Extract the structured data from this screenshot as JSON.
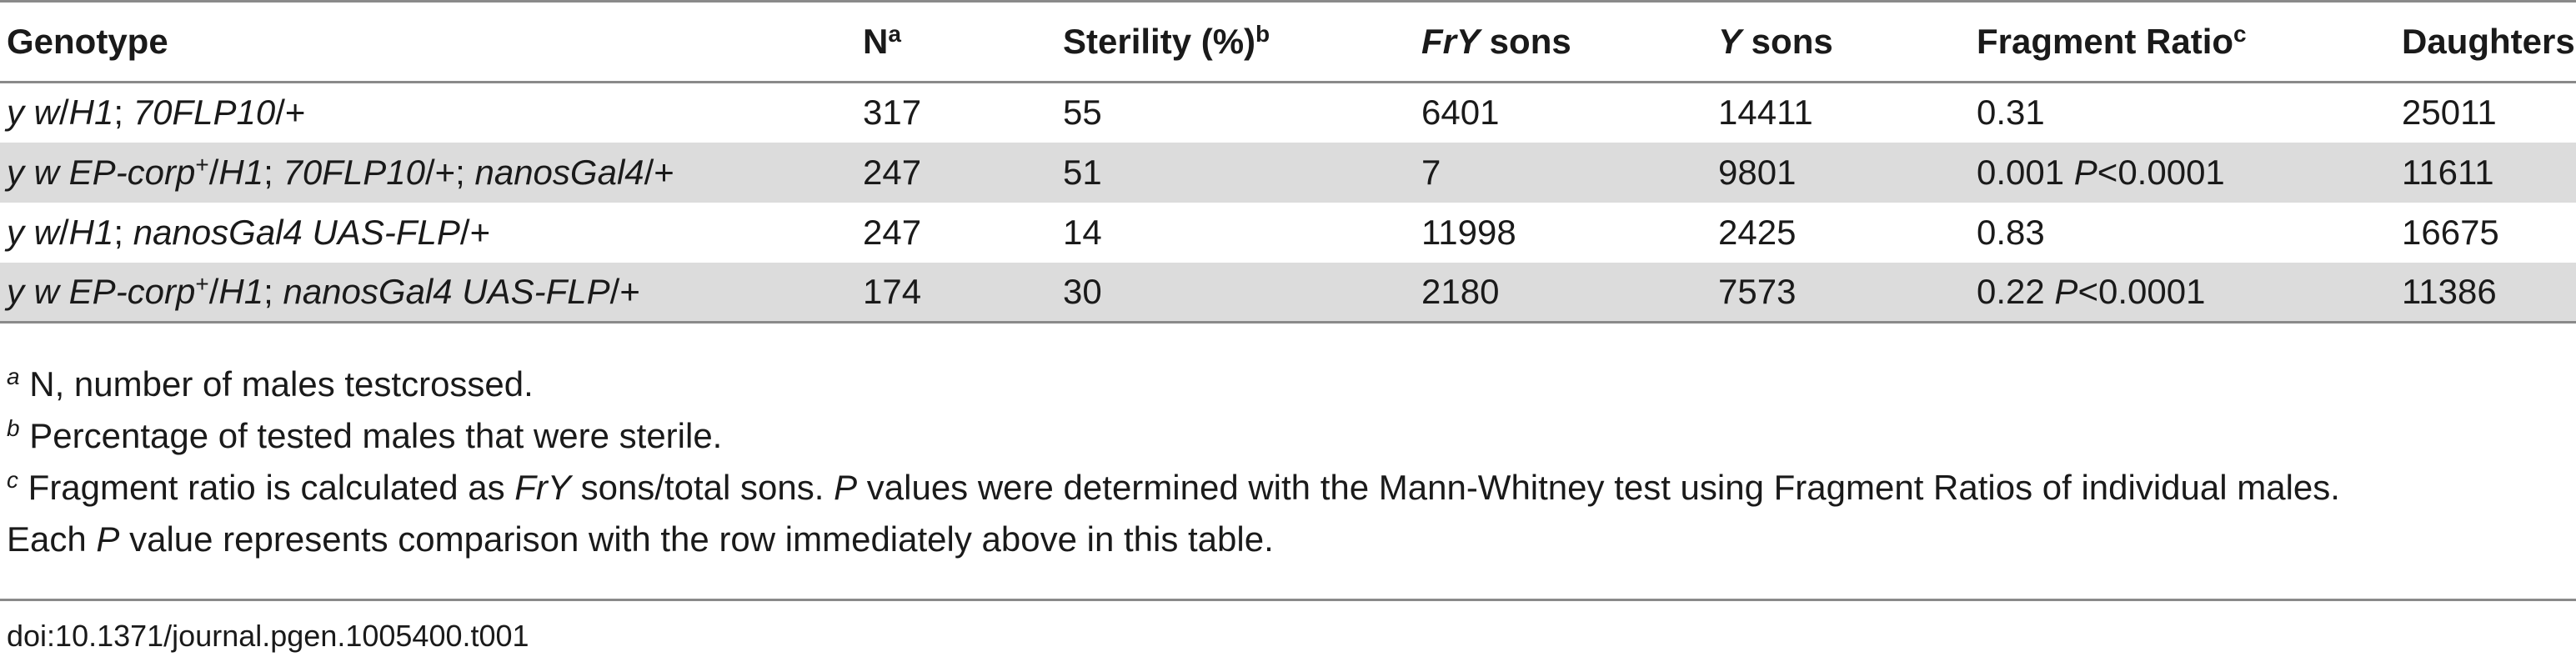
{
  "table": {
    "headers": {
      "genotype": "Genotype",
      "n": "N",
      "n_sup": "a",
      "sterility": "Sterility (%)",
      "sterility_sup": "b",
      "fry_italic": "FrY",
      "fry_rest": " sons",
      "y_italic": "Y",
      "y_rest": " sons",
      "ratio": "Fragment Ratio",
      "ratio_sup": "c",
      "daughters": "Daughters"
    },
    "rows": [
      {
        "geno_a": "y w",
        "geno_b": "/",
        "geno_c": "H1",
        "geno_d": "; ",
        "geno_e": "70FLP10",
        "geno_f": "/+",
        "n": "317",
        "sterility": "55",
        "fry": "6401",
        "y": "14411",
        "ratio": "0.31",
        "daughters": "25011"
      },
      {
        "geno_a": "y w EP-corp",
        "geno_sup": "+",
        "geno_b": "/",
        "geno_c": "H1",
        "geno_d": "; ",
        "geno_e": "70FLP10",
        "geno_f": "/+; ",
        "geno_g": "nanosGal4",
        "geno_h": "/+",
        "n": "247",
        "sterility": "51",
        "fry": "7",
        "y": "9801",
        "ratio": "0.001 ",
        "p_label": "P",
        "p_value": "<0.0001",
        "daughters": "11611"
      },
      {
        "geno_a": "y w",
        "geno_b": "/",
        "geno_c": "H1",
        "geno_d": "; ",
        "geno_e": "nanosGal4 UAS-FLP",
        "geno_f": "/+",
        "n": "247",
        "sterility": "14",
        "fry": "11998",
        "y": "2425",
        "ratio": "0.83",
        "daughters": "16675"
      },
      {
        "geno_a": "y w EP-corp",
        "geno_sup": "+",
        "geno_b": "/",
        "geno_c": "H1",
        "geno_d": "; ",
        "geno_e": "nanosGal4 UAS-FLP",
        "geno_f": "/+",
        "n": "174",
        "sterility": "30",
        "fry": "2180",
        "y": "7573",
        "ratio": "0.22 ",
        "p_label": "P",
        "p_value": "<0.0001",
        "daughters": "11386"
      }
    ]
  },
  "footnotes": {
    "a_mark": "a",
    "a_text": " N, number of males testcrossed.",
    "b_mark": "b",
    "b_text": " Percentage of tested males that were sterile.",
    "c_mark": "c",
    "c_text1": " Fragment ratio is calculated as ",
    "c_fry": "FrY",
    "c_text2": " sons/total sons. ",
    "c_p1": "P",
    "c_text3": " values were determined with the Mann-Whitney test using Fragment Ratios of individual males.",
    "c2_text1": "Each ",
    "c2_p": "P",
    "c2_text2": " value represents comparison with the row immediately above in this table."
  },
  "doi": "doi:10.1371/journal.pgen.1005400.t001"
}
